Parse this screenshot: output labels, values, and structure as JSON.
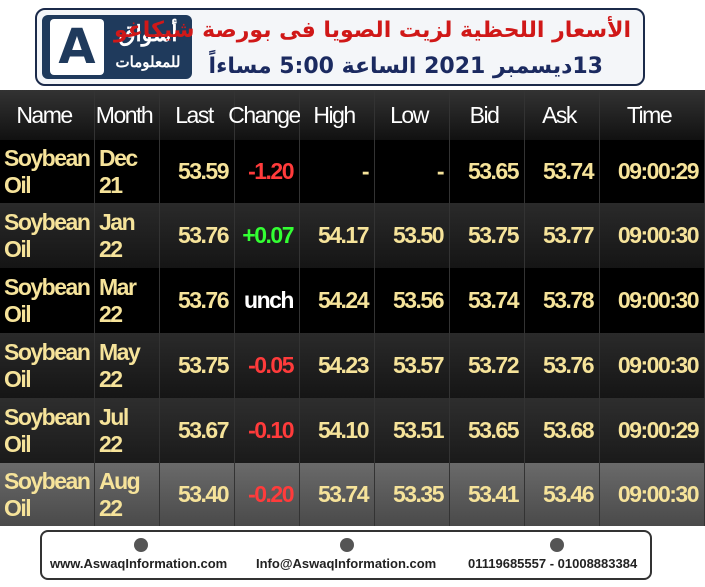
{
  "header": {
    "logo_name": "أسواق",
    "logo_sub": "للمعلومات",
    "title": "الأسعار اللحظية لزيت الصويا فى بورصة شيكاغو",
    "subtitle": "13ديسمبر 2021 الساعة 5:00 مساءاً"
  },
  "table": {
    "header": [
      "Name",
      "Month",
      "Last",
      "Change",
      "High",
      "Low",
      "Bid",
      "Ask",
      "Time"
    ],
    "rows": [
      [
        "Soybean Oil",
        "Dec 21",
        "53.59",
        "-1.20",
        "-",
        "-",
        "53.65",
        "53.74",
        "09:00:29"
      ],
      [
        "Soybean Oil",
        "Jan 22",
        "53.76",
        "+0.07",
        "54.17",
        "53.50",
        "53.75",
        "53.77",
        "09:00:30"
      ],
      [
        "Soybean Oil",
        "Mar 22",
        "53.76",
        "unch",
        "54.24",
        "53.56",
        "53.74",
        "53.78",
        "09:00:30"
      ],
      [
        "Soybean Oil",
        "May 22",
        "53.75",
        "-0.05",
        "54.23",
        "53.57",
        "53.72",
        "53.76",
        "09:00:30"
      ],
      [
        "Soybean Oil",
        "Jul 22",
        "53.67",
        "-0.10",
        "54.10",
        "53.51",
        "53.65",
        "53.68",
        "09:00:29"
      ],
      [
        "Soybean Oil",
        "Aug 22",
        "53.40",
        "-0.20",
        "53.74",
        "53.35",
        "53.41",
        "53.46",
        "09:00:30"
      ]
    ]
  },
  "footer": {
    "website": "www.AswaqInformation.com",
    "email": "Info@AswaqInformation.com",
    "phone": "01119685557 - 01008883384"
  }
}
